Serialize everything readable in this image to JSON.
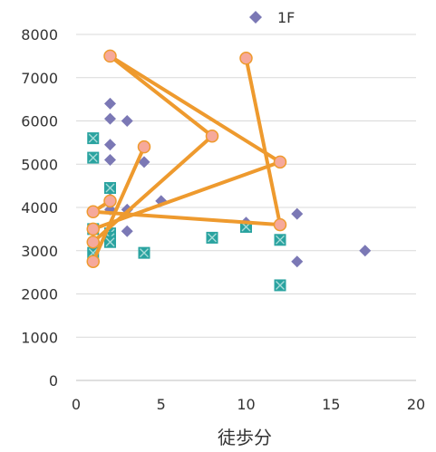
{
  "chart_data": {
    "type": "scatter",
    "xlabel": "徒歩分",
    "ylabel": "",
    "xlim": [
      0,
      20
    ],
    "ylim": [
      0,
      8000
    ],
    "x_ticks": [
      "0",
      "5",
      "10",
      "15",
      "20"
    ],
    "y_ticks": [
      "0",
      "1000",
      "2000",
      "3000",
      "4000",
      "5000",
      "6000",
      "7000",
      "8000"
    ],
    "grid": "horizontal",
    "legend_position": "top-right",
    "colors": {
      "diamond": "#7b78b5",
      "square": "#2aa3a0",
      "line": "#ee9a2e",
      "circle_fill": "#f6a99b",
      "grid": "#d9d9d9"
    },
    "series": [
      {
        "name": "1F",
        "marker": "diamond",
        "points": [
          [
            2,
            7500
          ],
          [
            2,
            6400
          ],
          [
            2,
            6050
          ],
          [
            3,
            6000
          ],
          [
            2,
            5450
          ],
          [
            2,
            5100
          ],
          [
            4,
            5050
          ],
          [
            2,
            4200
          ],
          [
            5,
            4150
          ],
          [
            2,
            3950
          ],
          [
            3,
            3950
          ],
          [
            3,
            3450
          ],
          [
            8,
            3300
          ],
          [
            10,
            3650
          ],
          [
            12,
            3600
          ],
          [
            13,
            3850
          ],
          [
            13,
            2750
          ],
          [
            17,
            3000
          ],
          [
            1,
            3900
          ]
        ]
      },
      {
        "marker": "square",
        "points": [
          [
            1,
            5600
          ],
          [
            1,
            5150
          ],
          [
            2,
            4450
          ],
          [
            1,
            3500
          ],
          [
            2,
            3400
          ],
          [
            2,
            3300
          ],
          [
            2,
            3200
          ],
          [
            1,
            2950
          ],
          [
            4,
            2950
          ],
          [
            8,
            3300
          ],
          [
            10,
            3550
          ],
          [
            12,
            3250
          ],
          [
            12,
            2200
          ]
        ]
      },
      {
        "marker": "circle-line",
        "segments": [
          [
            [
              2,
              7500
            ],
            [
              8,
              5650
            ],
            [
              1,
              3200
            ]
          ],
          [
            [
              2,
              7500
            ],
            [
              12,
              5050
            ],
            [
              1,
              3500
            ]
          ],
          [
            [
              10,
              7450
            ],
            [
              12,
              3600
            ],
            [
              1,
              3900
            ]
          ],
          [
            [
              4,
              5400
            ],
            [
              1,
              2750
            ]
          ],
          [
            [
              1,
              3900
            ],
            [
              2,
              4150
            ]
          ]
        ]
      }
    ]
  }
}
